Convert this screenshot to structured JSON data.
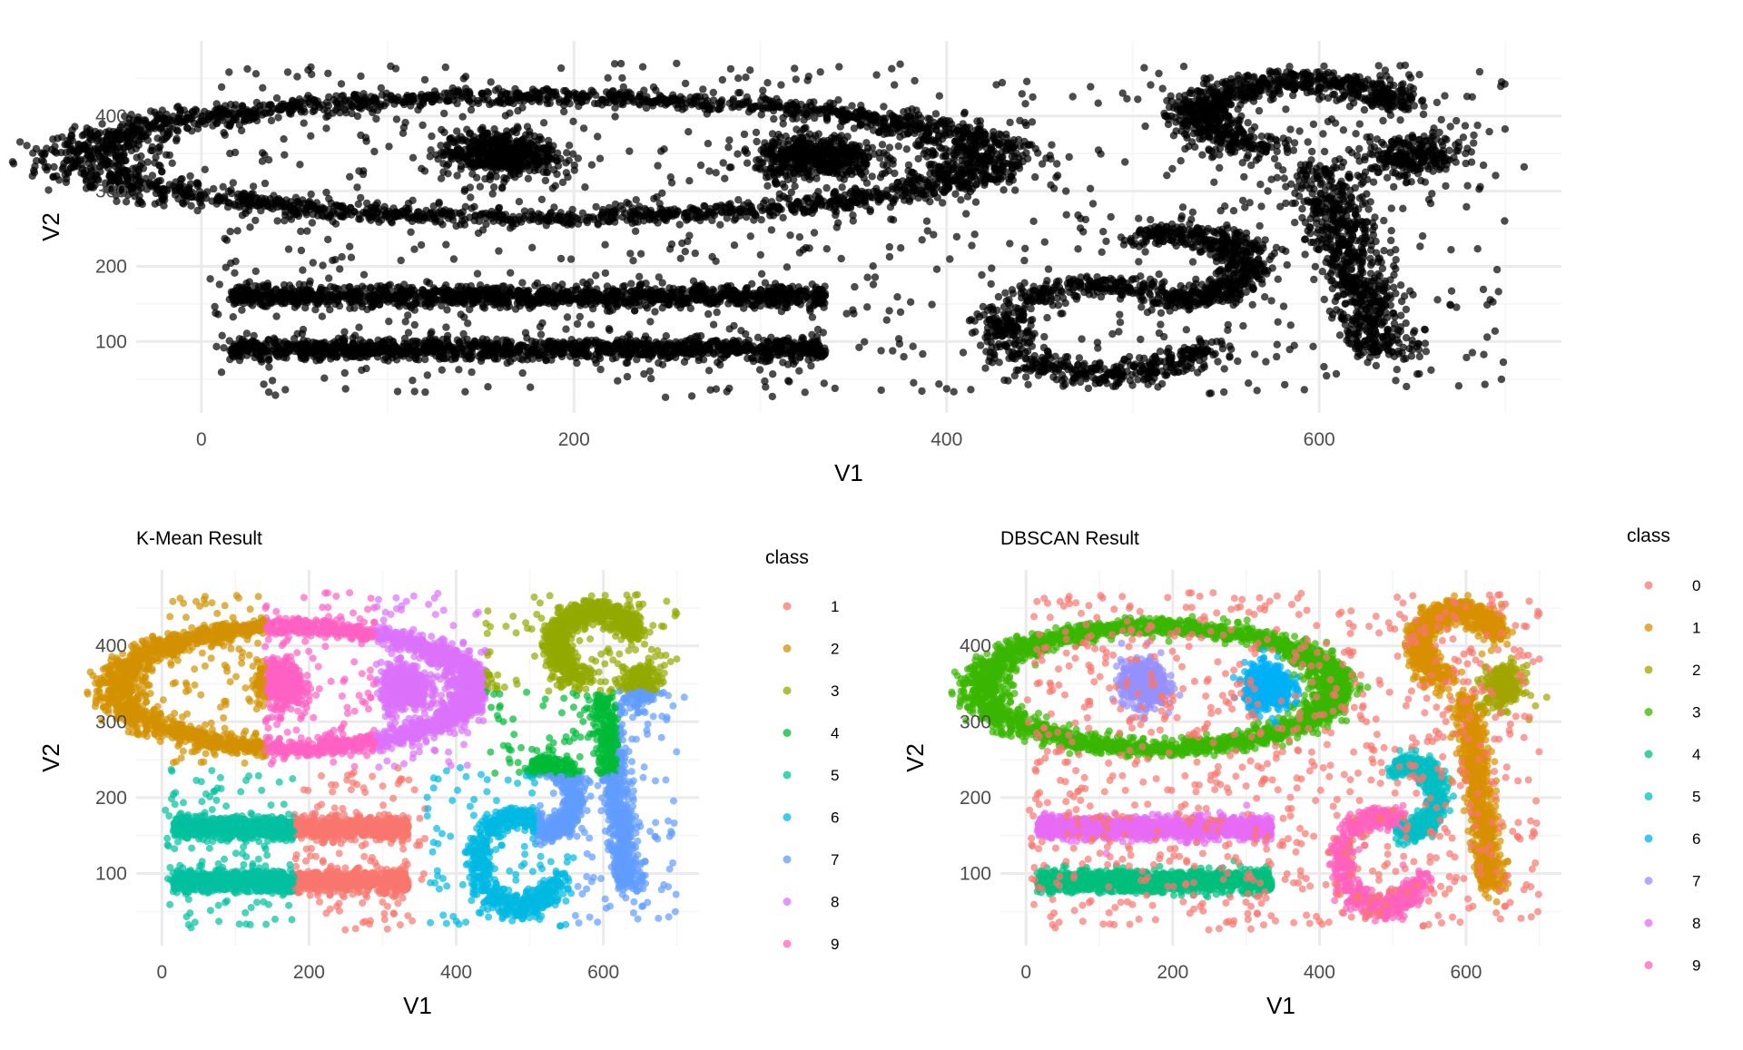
{
  "colors": {
    "grid_major": "#ebebeb",
    "grid_minor": "#f5f5f5",
    "axis_text": "#4d4d4d",
    "title": "#000000",
    "points_top": "#000000"
  },
  "chart_data": [
    {
      "id": "raw",
      "type": "scatter",
      "title": "",
      "xlabel": "V1",
      "ylabel": "V2",
      "xlim": [
        -35,
        730
      ],
      "ylim": [
        5,
        500
      ],
      "x_ticks": [
        0,
        200,
        400,
        600
      ],
      "y_ticks": [
        100,
        200,
        300,
        400
      ],
      "x_tick_labels": [
        "0",
        "200",
        "400",
        "600"
      ],
      "y_tick_labels": [
        "100",
        "200",
        "300",
        "400"
      ],
      "grid": true,
      "legend": "none",
      "point_color": "#000000",
      "series": [
        {
          "shape": "outer-ellipse",
          "cx": 345,
          "cy": 345,
          "rx": 460,
          "ry": 90
        },
        {
          "shape": "blob",
          "cx": 160,
          "cy": 350,
          "rx": 40,
          "ry": 40
        },
        {
          "shape": "blob",
          "cx": 330,
          "cy": 345,
          "rx": 42,
          "ry": 40
        },
        {
          "shape": "band",
          "x0": 15,
          "x1": 335,
          "y": 160,
          "h": 22
        },
        {
          "shape": "band",
          "x0": 15,
          "x1": 335,
          "y": 90,
          "h": 22
        },
        {
          "shape": "hook-a",
          "cx": 500,
          "cy": 150
        },
        {
          "shape": "hook-b",
          "cx": 610,
          "cy": 330
        },
        {
          "shape": "noise",
          "x0": 0,
          "x1": 700,
          "y0": 25,
          "y1": 470
        }
      ]
    },
    {
      "id": "kmeans",
      "type": "scatter",
      "title": "K-Mean Result",
      "xlabel": "V1",
      "ylabel": "V2",
      "xlim": [
        -35,
        730
      ],
      "ylim": [
        5,
        500
      ],
      "x_ticks": [
        0,
        200,
        400,
        600
      ],
      "y_ticks": [
        100,
        200,
        300,
        400
      ],
      "x_tick_labels": [
        "0",
        "200",
        "400",
        "600"
      ],
      "y_tick_labels": [
        "100",
        "200",
        "300",
        "400"
      ],
      "grid": true,
      "legend": "right",
      "legend_title": "class",
      "legend_entries": [
        {
          "label": "1",
          "color": "#F8766D"
        },
        {
          "label": "2",
          "color": "#D39200"
        },
        {
          "label": "3",
          "color": "#93AA00"
        },
        {
          "label": "4",
          "color": "#00BA38"
        },
        {
          "label": "5",
          "color": "#00C19F"
        },
        {
          "label": "6",
          "color": "#00B9E3"
        },
        {
          "label": "7",
          "color": "#619CFF"
        },
        {
          "label": "8",
          "color": "#DB72FB"
        },
        {
          "label": "9",
          "color": "#FF61C3"
        }
      ]
    },
    {
      "id": "dbscan",
      "type": "scatter",
      "title": "DBSCAN Result",
      "xlabel": "V1",
      "ylabel": "V2",
      "xlim": [
        -35,
        730
      ],
      "ylim": [
        5,
        500
      ],
      "x_ticks": [
        0,
        200,
        400,
        600
      ],
      "y_ticks": [
        100,
        200,
        300,
        400
      ],
      "x_tick_labels": [
        "0",
        "200",
        "400",
        "600"
      ],
      "y_tick_labels": [
        "100",
        "200",
        "300",
        "400"
      ],
      "grid": true,
      "legend": "right",
      "legend_title": "class",
      "legend_entries": [
        {
          "label": "0",
          "color": "#F8766D"
        },
        {
          "label": "1",
          "color": "#D89000"
        },
        {
          "label": "2",
          "color": "#A3A500"
        },
        {
          "label": "3",
          "color": "#39B600"
        },
        {
          "label": "4",
          "color": "#00BF7D"
        },
        {
          "label": "5",
          "color": "#00BFC4"
        },
        {
          "label": "6",
          "color": "#00B0F6"
        },
        {
          "label": "7",
          "color": "#9590FF"
        },
        {
          "label": "8",
          "color": "#E76BF3"
        },
        {
          "label": "9",
          "color": "#FF62BC"
        }
      ]
    }
  ]
}
